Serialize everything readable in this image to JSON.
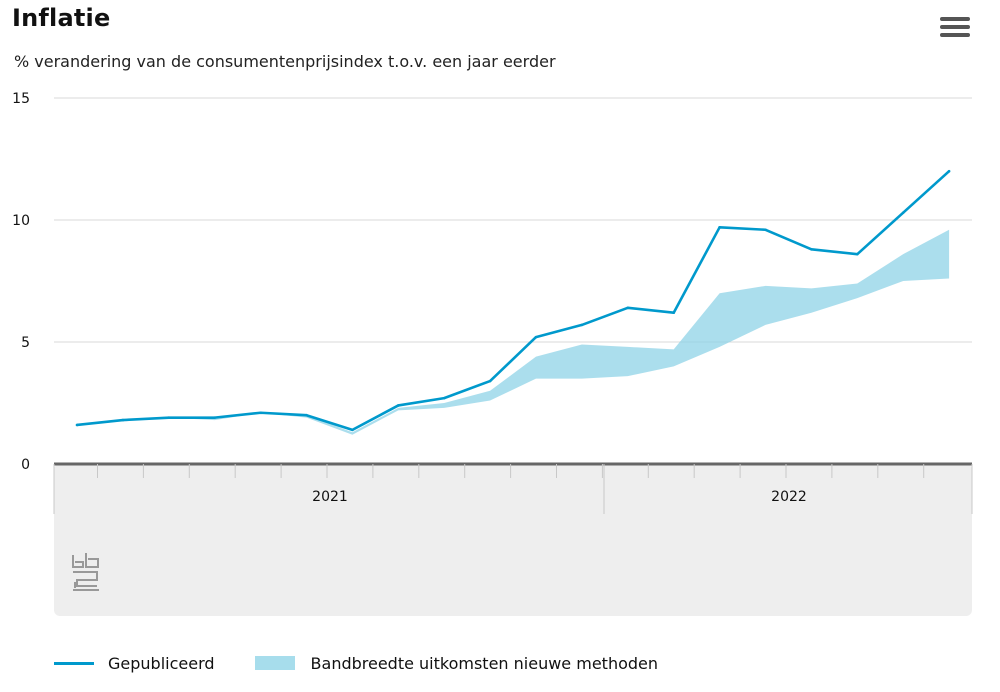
{
  "header": {
    "title": "Inflatie",
    "subtitle": "% verandering van de consumentenprijsindex t.o.v. een jaar eerder"
  },
  "colors": {
    "line": "#0099cc",
    "band": "#8ad1e6",
    "grid": "#d9d9d9",
    "axis": "#666666",
    "xaxis_bg": "#eeeeee",
    "text": "#111111"
  },
  "legend": {
    "line_label": "Gepubliceerd",
    "band_label": "Bandbreedte uitkomsten nieuwe methoden"
  },
  "chart_data": {
    "type": "line",
    "title": "Inflatie",
    "subtitle": "% verandering van de consumentenprijsindex t.o.v. een jaar eerder",
    "xlabel": "",
    "ylabel": "",
    "ylim": [
      0,
      15
    ],
    "y_ticks": [
      0,
      5,
      10,
      15
    ],
    "x_groups": [
      {
        "label": "2021",
        "months": 12
      },
      {
        "label": "2022",
        "months": 8
      }
    ],
    "categories": [
      "2021-01",
      "2021-02",
      "2021-03",
      "2021-04",
      "2021-05",
      "2021-06",
      "2021-07",
      "2021-08",
      "2021-09",
      "2021-10",
      "2021-11",
      "2021-12",
      "2022-01",
      "2022-02",
      "2022-03",
      "2022-04",
      "2022-05",
      "2022-06",
      "2022-07",
      "2022-08"
    ],
    "series": [
      {
        "name": "Gepubliceerd",
        "type": "line",
        "values": [
          1.6,
          1.8,
          1.9,
          1.9,
          2.1,
          2.0,
          1.4,
          2.4,
          2.7,
          3.4,
          5.2,
          5.7,
          6.4,
          6.2,
          9.7,
          9.6,
          8.8,
          8.6,
          10.3,
          12.0
        ]
      },
      {
        "name": "Bandbreedte uitkomsten nieuwe methoden",
        "type": "area-range",
        "low": [
          1.6,
          1.8,
          1.9,
          1.8,
          2.1,
          1.9,
          1.2,
          2.2,
          2.3,
          2.6,
          3.5,
          3.5,
          3.6,
          4.0,
          4.8,
          5.7,
          6.2,
          6.8,
          7.5,
          7.6
        ],
        "high": [
          1.6,
          1.8,
          1.9,
          1.9,
          2.1,
          2.0,
          1.3,
          2.3,
          2.5,
          3.0,
          4.4,
          4.9,
          4.8,
          4.7,
          7.0,
          7.3,
          7.2,
          7.4,
          8.6,
          9.6
        ]
      }
    ]
  }
}
